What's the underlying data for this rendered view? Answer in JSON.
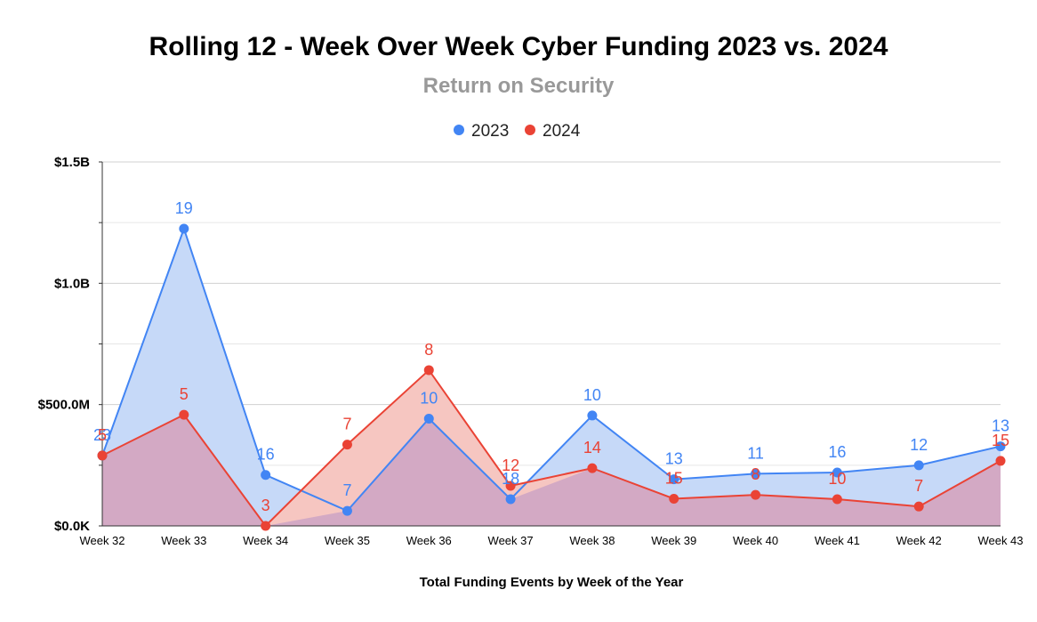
{
  "chart_data": {
    "type": "area",
    "title": "Rolling 12 - Week Over Week Cyber Funding 2023 vs. 2024",
    "subtitle": "Return on Security",
    "xlabel": "Total Funding Events by Week of the Year",
    "ylabel": "",
    "categories": [
      "Week 32",
      "Week 33",
      "Week 34",
      "Week 35",
      "Week 36",
      "Week 37",
      "Week 38",
      "Week 39",
      "Week 40",
      "Week 41",
      "Week 42",
      "Week 43"
    ],
    "y_ticks": [
      {
        "value": 0,
        "label": "$0.0K"
      },
      {
        "value": 500000000,
        "label": "$500.0M"
      },
      {
        "value": 1000000000,
        "label": "$1.0B"
      },
      {
        "value": 1500000000,
        "label": "$1.5B"
      }
    ],
    "ylim": [
      0,
      1500000000
    ],
    "grid": true,
    "legend_position": "top",
    "series": [
      {
        "name": "2023",
        "color": "#4285f4",
        "fill": "#c6d9f8",
        "values": [
          290000000,
          1225000000,
          210000000,
          62000000,
          442000000,
          110000000,
          455000000,
          192000000,
          215000000,
          220000000,
          250000000,
          328000000
        ],
        "labels": [
          "23",
          "19",
          "16",
          "7",
          "10",
          "18",
          "10",
          "13",
          "11",
          "16",
          "12",
          "13"
        ]
      },
      {
        "name": "2024",
        "color": "#ea4335",
        "fill": "#f6c6c1",
        "values": [
          290000000,
          458000000,
          0,
          335000000,
          642000000,
          165000000,
          238000000,
          112000000,
          128000000,
          110000000,
          80000000,
          268000000
        ],
        "labels": [
          "5",
          "5",
          "3",
          "7",
          "8",
          "12",
          "14",
          "15",
          "8",
          "10",
          "7",
          "15"
        ]
      }
    ],
    "overlap_fill": "#d3a9c4"
  }
}
